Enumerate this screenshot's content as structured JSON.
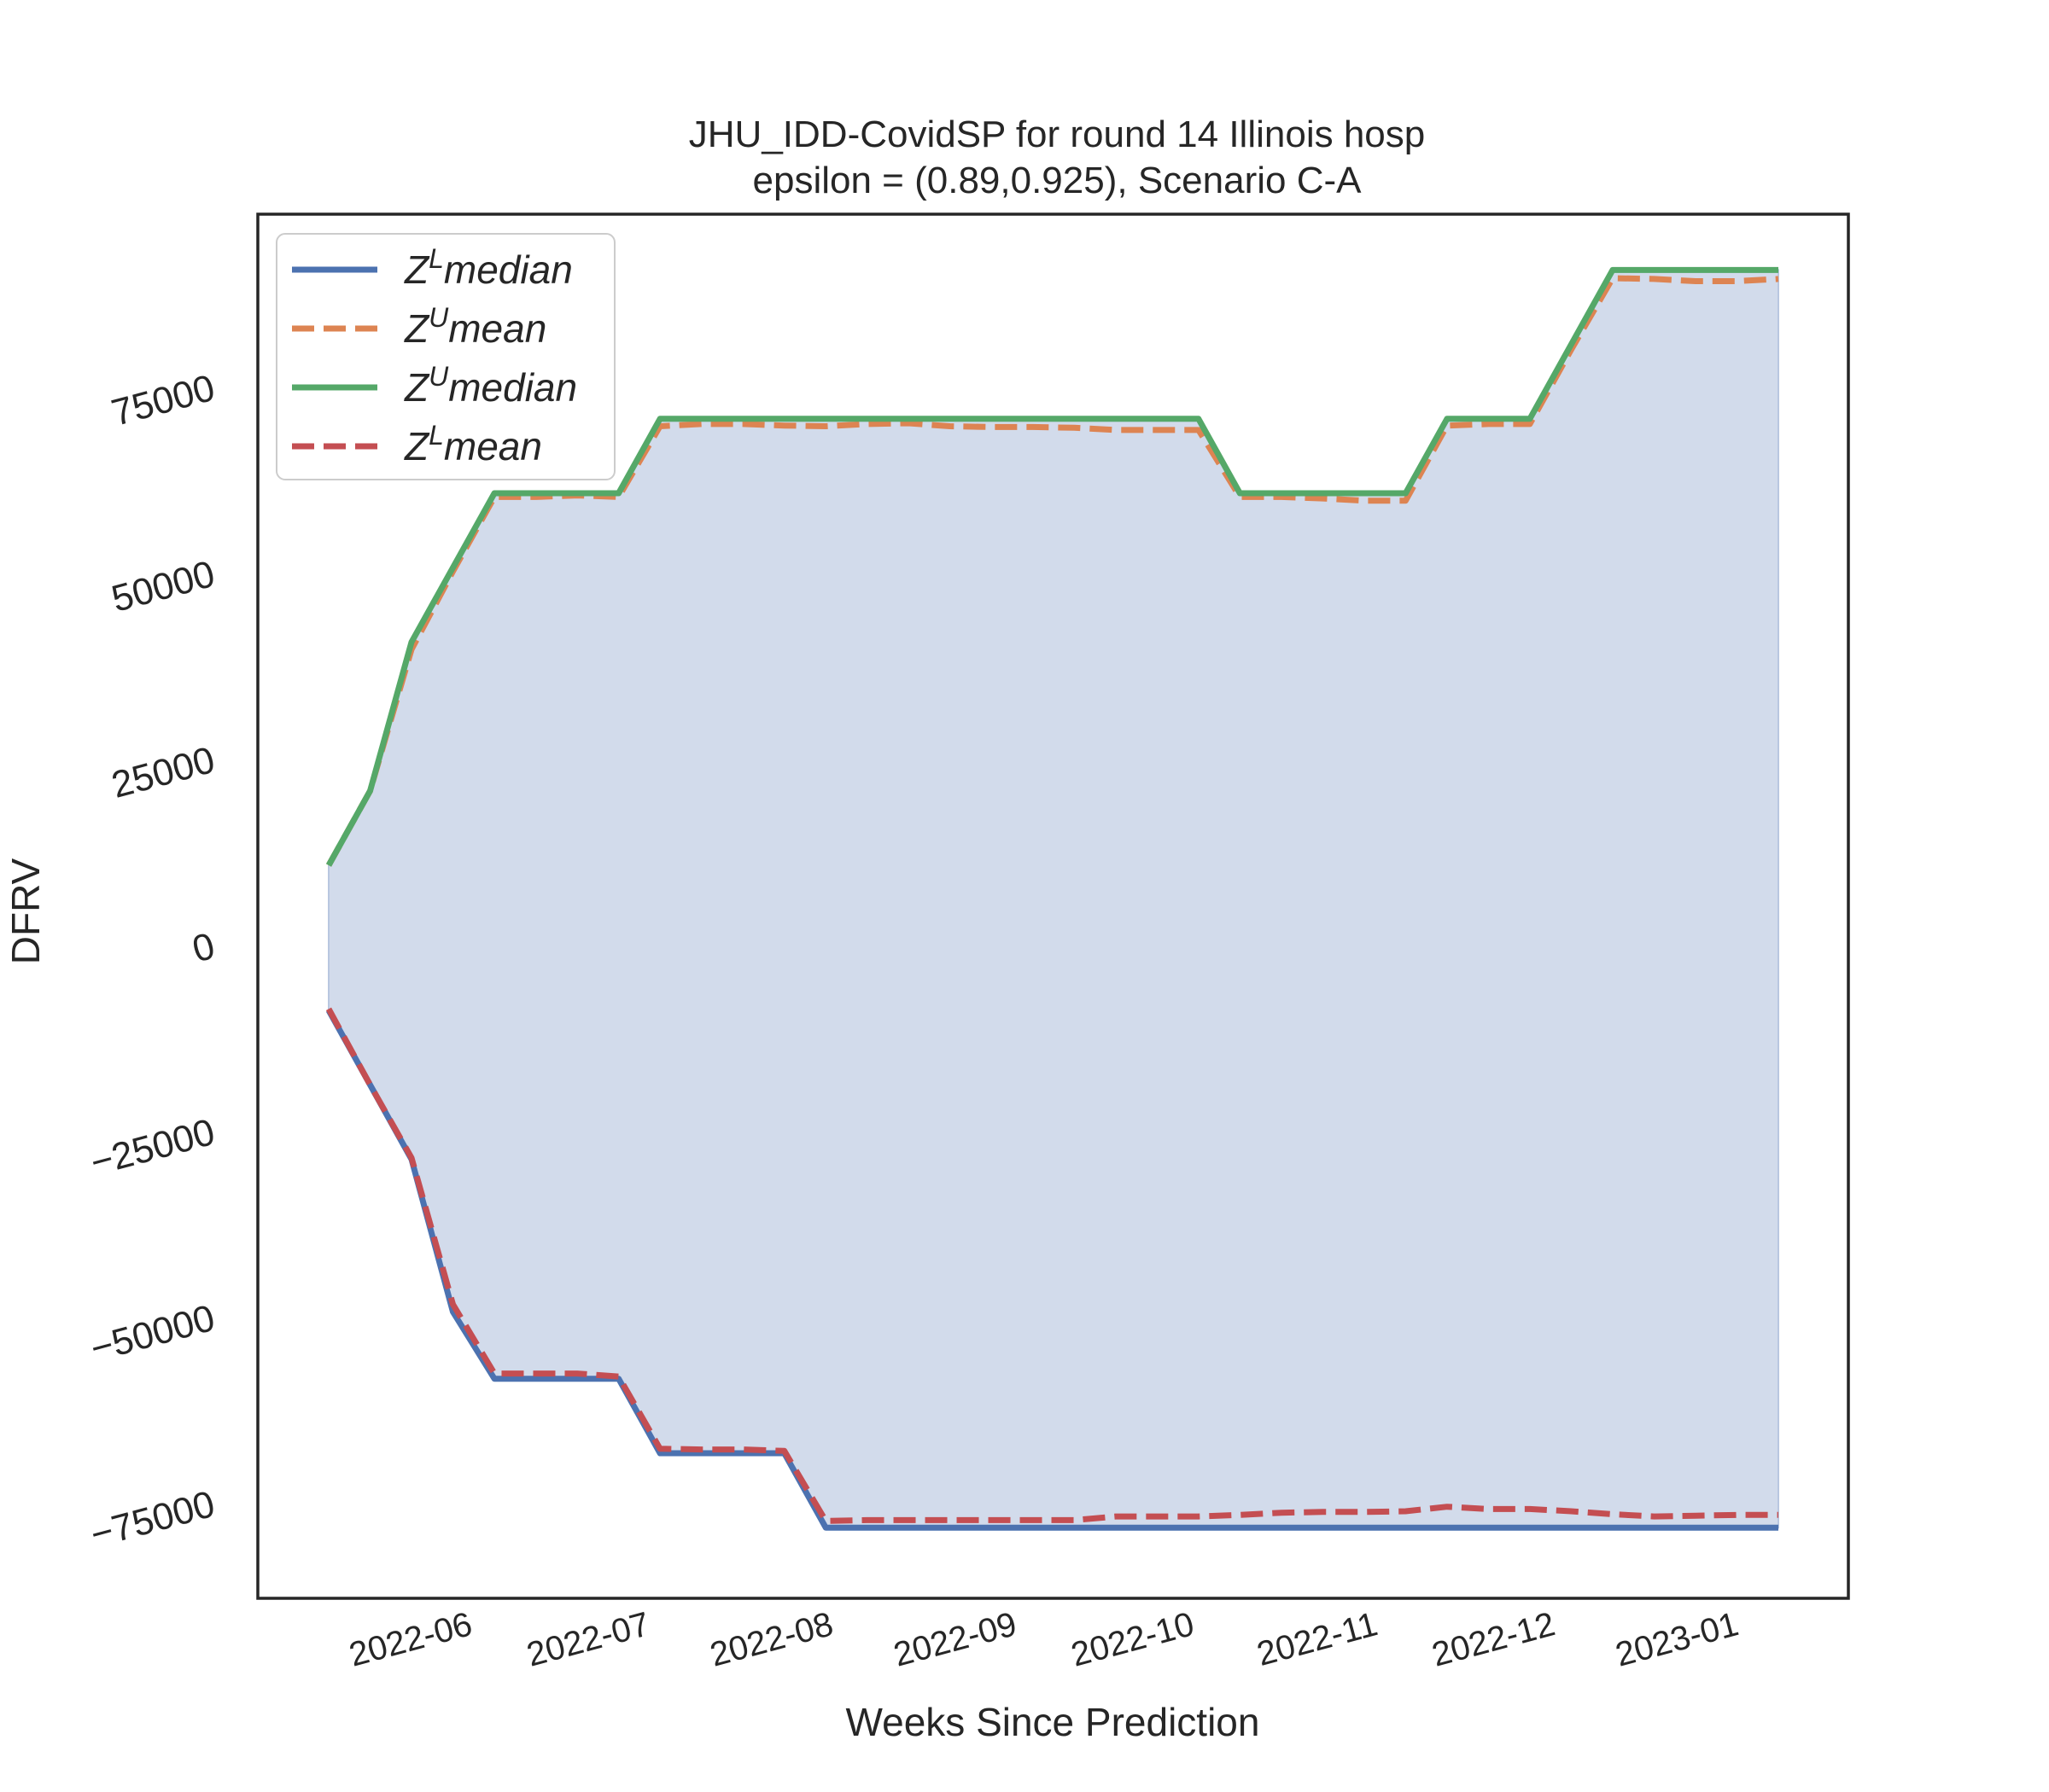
{
  "chart_data": {
    "type": "line",
    "title": "JHU_IDD-CovidSP for round 14 Illinois  hosp",
    "subtitle": "epsilon = (0.89,0.925), Scenario C-A",
    "xlabel": "Weeks Since Prediction",
    "ylabel": "DFRV",
    "ylim": [
      -88000,
      98000
    ],
    "grid": false,
    "legend_position": "top-left",
    "x_ticks": [
      "2022-06",
      "2022-07",
      "2022-08",
      "2022-09",
      "2022-10",
      "2022-11",
      "2022-12",
      "2023-01"
    ],
    "y_ticks": [
      {
        "value": 75000,
        "label": "75000"
      },
      {
        "value": 50000,
        "label": "50000"
      },
      {
        "value": 25000,
        "label": "25000"
      },
      {
        "value": 0,
        "label": "0"
      },
      {
        "value": -25000,
        "label": "−25000"
      },
      {
        "value": -50000,
        "label": "−50000"
      },
      {
        "value": -75000,
        "label": "−75000"
      }
    ],
    "x": [
      "2022-05-08",
      "2022-05-15",
      "2022-05-22",
      "2022-05-29",
      "2022-06-05",
      "2022-06-12",
      "2022-06-19",
      "2022-06-26",
      "2022-07-03",
      "2022-07-10",
      "2022-07-17",
      "2022-07-24",
      "2022-07-31",
      "2022-08-07",
      "2022-08-14",
      "2022-08-21",
      "2022-08-28",
      "2022-09-04",
      "2022-09-11",
      "2022-09-18",
      "2022-09-25",
      "2022-10-02",
      "2022-10-09",
      "2022-10-16",
      "2022-10-23",
      "2022-10-30",
      "2022-11-06",
      "2022-11-13",
      "2022-11-20",
      "2022-11-27",
      "2022-12-04",
      "2022-12-11",
      "2022-12-18",
      "2022-12-25",
      "2023-01-01",
      "2023-01-08"
    ],
    "fill_between": {
      "lower": "Z^Lmedian",
      "upper": "Z^Umedian",
      "color": "#d2dbeb"
    },
    "series": [
      {
        "name": "Z^Lmedian",
        "label_base": "Z",
        "label_sup": "L",
        "label_rest": "median",
        "color": "#4c72b0",
        "dash": "solid",
        "values": [
          -9000,
          -19000,
          -29000,
          -49500,
          -58500,
          -58500,
          -58500,
          -58500,
          -68500,
          -68500,
          -68500,
          -68500,
          -78500,
          -78500,
          -78500,
          -78500,
          -78500,
          -78500,
          -78500,
          -78500,
          -78500,
          -78500,
          -78500,
          -78500,
          -78500,
          -78500,
          -78500,
          -78500,
          -78500,
          -78500,
          -78500,
          -78500,
          -78500,
          -78500,
          -78500,
          -78500
        ]
      },
      {
        "name": "Z^Umean",
        "label_base": "Z",
        "label_sup": "U",
        "label_rest": "mean",
        "color": "#dd8452",
        "dash": "dashed",
        "values": [
          10500,
          20500,
          39500,
          50000,
          60000,
          60000,
          60200,
          60000,
          69500,
          69800,
          69800,
          69600,
          69500,
          69800,
          69900,
          69500,
          69400,
          69400,
          69300,
          69000,
          69000,
          69000,
          60000,
          60000,
          59800,
          59500,
          59500,
          69600,
          69800,
          69800,
          79800,
          89400,
          89300,
          89000,
          89000,
          89300
        ]
      },
      {
        "name": "Z^Umedian",
        "label_base": "Z",
        "label_sup": "U",
        "label_rest": "median",
        "color": "#55a868",
        "dash": "solid",
        "values": [
          10500,
          20500,
          40500,
          50500,
          60500,
          60500,
          60500,
          60500,
          70500,
          70500,
          70500,
          70500,
          70500,
          70500,
          70500,
          70500,
          70500,
          70500,
          70500,
          70500,
          70500,
          70500,
          60500,
          60500,
          60500,
          60500,
          60500,
          70500,
          70500,
          70500,
          80500,
          90500,
          90500,
          90500,
          90500,
          90500
        ]
      },
      {
        "name": "Z^Lmean",
        "label_base": "Z",
        "label_sup": "L",
        "label_rest": "mean",
        "color": "#c44e52",
        "dash": "dashed",
        "values": [
          -8800,
          -19000,
          -28800,
          -48500,
          -57800,
          -57800,
          -57800,
          -58200,
          -67900,
          -68000,
          -68000,
          -68200,
          -77600,
          -77500,
          -77500,
          -77500,
          -77500,
          -77500,
          -77500,
          -77000,
          -77000,
          -77000,
          -76800,
          -76500,
          -76400,
          -76400,
          -76300,
          -75700,
          -76000,
          -76000,
          -76300,
          -76700,
          -77000,
          -76900,
          -76800,
          -76800
        ]
      }
    ]
  }
}
